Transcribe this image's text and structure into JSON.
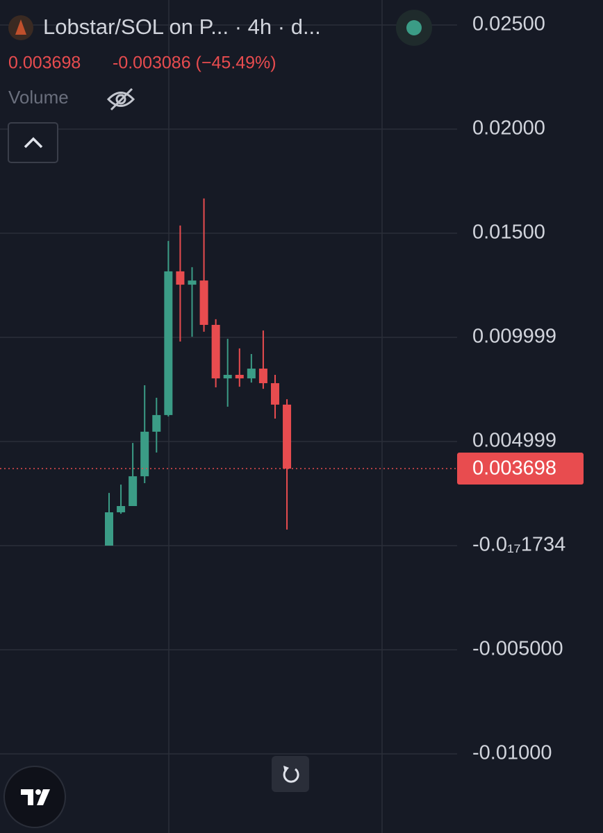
{
  "chart_data": {
    "type": "candlestick",
    "title": "Lobstar/SOL on P... · 4h · d...",
    "last_price": 0.003698,
    "change": "-0.003086 (−45.49%)",
    "volume_label": "Volume",
    "up_color": "#3b9c86",
    "down_color": "#e84c4f",
    "grid": true,
    "categories": [
      null,
      null,
      null,
      null,
      null,
      null,
      null,
      null,
      null,
      null,
      null,
      null,
      null,
      null,
      null,
      null
    ],
    "open": [
      0.0,
      0.0016,
      0.0019,
      0.00333,
      0.00547,
      0.00627,
      0.01317,
      0.01253,
      0.01273,
      0.0106,
      0.00803,
      0.0082,
      0.00803,
      0.0085,
      0.0078,
      0.00677
    ],
    "close": [
      0.0016,
      0.0019,
      0.00333,
      0.00547,
      0.00627,
      0.01317,
      0.01253,
      0.01273,
      0.0106,
      0.00803,
      0.0082,
      0.00803,
      0.0085,
      0.0078,
      0.00677,
      0.003698
    ],
    "high": [
      0.00253,
      0.00293,
      0.00493,
      0.0077,
      0.0071,
      0.01463,
      0.01537,
      0.01337,
      0.01667,
      0.01087,
      0.00993,
      0.00947,
      0.0092,
      0.01033,
      0.0082,
      0.00703
    ],
    "low": [
      0.0,
      0.00153,
      0.0019,
      0.003,
      0.00447,
      0.0062,
      0.0098,
      0.01003,
      0.01027,
      0.0076,
      0.00667,
      0.00763,
      0.00783,
      0.00753,
      0.0061,
      0.00077
    ],
    "ylim": [
      -0.0138,
      0.0262
    ],
    "yticks": [
      {
        "value": 0.025,
        "label": "0.02500"
      },
      {
        "value": 0.02,
        "label": "0.02000"
      },
      {
        "value": 0.015,
        "label": "0.01500"
      },
      0.009999,
      0.004999,
      {
        "value": -1.734e-18,
        "label": "-0.0₁₇1734"
      },
      {
        "value": -0.005,
        "label": "-0.005000"
      },
      {
        "value": -0.01,
        "label": "-0.01000"
      }
    ]
  }
}
